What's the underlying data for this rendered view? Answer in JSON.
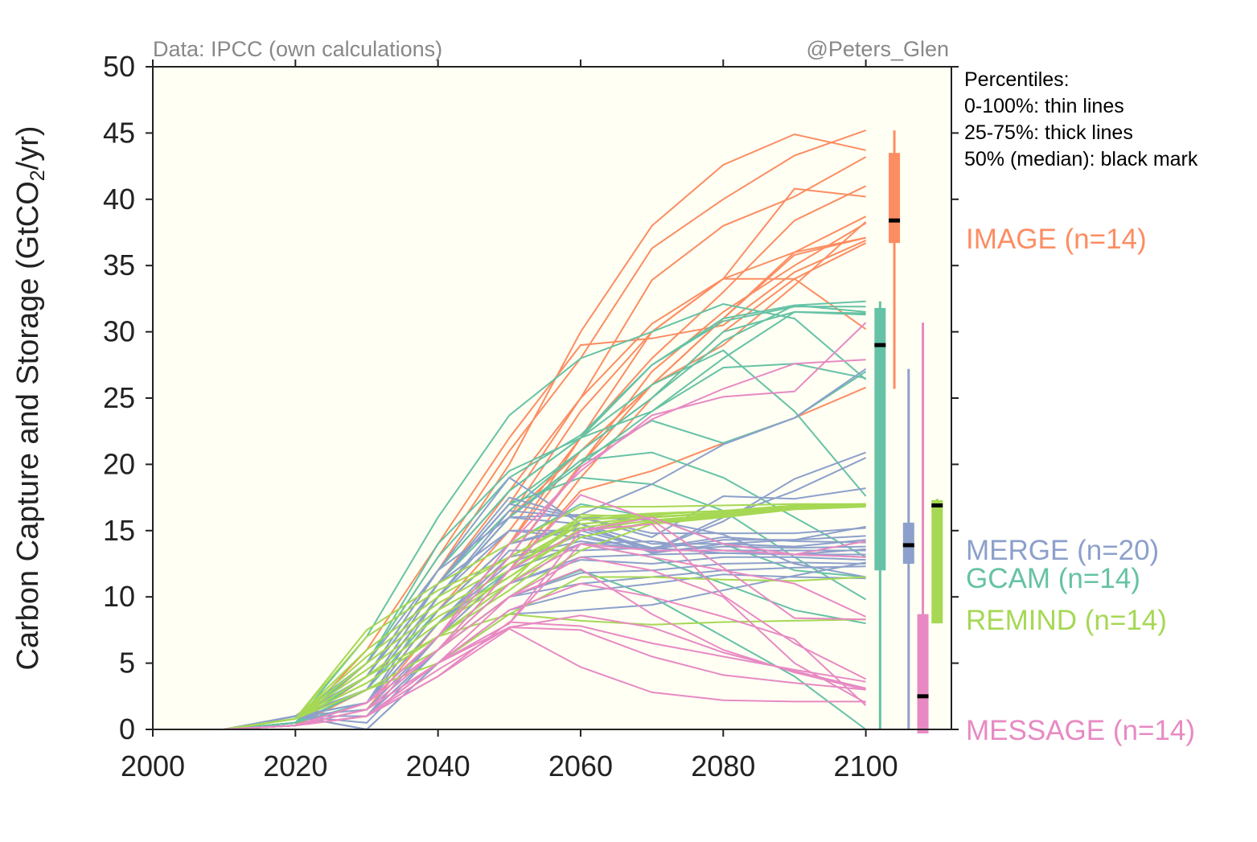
{
  "chart_data": {
    "type": "line",
    "header_left": "Data: IPCC (own calculations)",
    "header_right": "@Peters_Glen",
    "ylabel_main": "Carbon Capture and Storage (GtCO",
    "ylabel_sub": "2",
    "ylabel_end": "/yr)",
    "xlabel": "",
    "xlim": [
      2000,
      2112
    ],
    "ylim": [
      0,
      50
    ],
    "xticks": [
      2000,
      2020,
      2040,
      2060,
      2080,
      2100
    ],
    "yticks": [
      0,
      5,
      10,
      15,
      20,
      25,
      30,
      35,
      40,
      45,
      50
    ],
    "grid": false,
    "background": "#fffff4",
    "legend_notes": [
      "Percentiles:",
      "0-100%: thin lines",
      "25-75%: thick lines",
      "50% (median): black mark"
    ],
    "x": [
      2010,
      2020,
      2030,
      2040,
      2050,
      2060,
      2070,
      2080,
      2090,
      2100
    ],
    "models": [
      {
        "name": "IMAGE",
        "label": "IMAGE (n=14)",
        "color": "#fc8d62",
        "box": {
          "x": 2104,
          "min": 25.7,
          "q1": 36.7,
          "median": 38.4,
          "q3": 43.5,
          "max": 45.2
        },
        "series": [
          [
            0,
            0.3,
            2,
            9,
            15,
            22,
            30,
            34,
            36,
            37.1
          ],
          [
            0,
            0.3,
            3,
            11,
            18,
            25,
            30.6,
            34,
            34,
            30.2
          ],
          [
            0,
            0.3,
            4,
            12,
            20,
            30,
            38,
            42.6,
            44.9,
            43.7
          ],
          [
            0,
            0.3,
            5,
            13,
            21,
            28,
            36.3,
            40,
            43.3,
            45.2
          ],
          [
            0,
            0.3,
            4,
            11,
            17,
            25,
            33.9,
            38,
            40.2,
            43.2
          ],
          [
            0,
            0.3,
            3,
            10,
            16,
            24,
            30,
            34,
            40.8,
            40.2
          ],
          [
            0,
            0.3,
            2,
            9,
            14,
            22,
            28,
            33,
            38.4,
            41
          ],
          [
            0,
            0.3,
            3,
            10,
            16,
            21,
            26,
            31,
            36,
            38.7
          ],
          [
            0,
            0.3,
            2,
            8,
            13,
            20,
            27,
            31.5,
            35,
            38.2
          ],
          [
            0,
            0.3,
            1.5,
            8,
            13,
            20,
            26,
            31,
            35.8,
            37.1
          ],
          [
            0,
            0.3,
            1,
            7,
            12,
            19,
            25,
            30,
            34,
            36.7
          ],
          [
            0,
            0.3,
            2,
            9,
            14,
            21,
            26,
            29,
            33.5,
            38.3
          ],
          [
            0,
            0.3,
            1,
            7,
            12,
            18,
            19.5,
            21.6,
            23.5,
            25.8
          ],
          [
            0,
            0.3,
            6,
            14,
            22,
            29,
            29.5,
            30.5,
            34.5,
            36.9
          ]
        ]
      },
      {
        "name": "GCAM",
        "label": "GCAM  (n=14)",
        "color": "#66c2a5",
        "box": {
          "x": 2102,
          "min": 0,
          "q1": 12,
          "median": 29,
          "q3": 31.8,
          "max": 32.3
        },
        "series": [
          [
            0,
            0.5,
            7,
            16,
            23.7,
            28,
            30,
            32.1,
            31,
            26.4
          ],
          [
            0,
            0.5,
            5,
            13,
            19,
            22.2,
            27.5,
            31,
            32,
            32.3
          ],
          [
            0,
            0.5,
            4,
            12,
            18,
            22,
            27.5,
            30.8,
            31.9,
            31.9
          ],
          [
            0,
            0.5,
            4,
            11,
            17,
            21,
            25,
            29.3,
            32,
            31.5
          ],
          [
            0,
            0.5,
            3,
            11,
            16.5,
            21,
            25,
            30,
            31.5,
            31.4
          ],
          [
            0,
            0.5,
            3,
            10,
            16,
            20,
            24,
            28,
            31.5,
            31.3
          ],
          [
            0,
            0.5,
            3,
            10,
            16,
            20.3,
            23.3,
            21.6,
            23.5,
            27
          ],
          [
            0,
            0.5,
            5,
            14,
            19.5,
            22,
            24,
            27.3,
            27.6,
            26.5
          ],
          [
            0,
            0.5,
            4,
            12,
            18,
            22,
            26,
            28.6,
            24,
            17.6
          ],
          [
            0,
            0.5,
            3,
            10,
            16,
            20.3,
            20.9,
            19,
            16,
            13
          ],
          [
            0,
            0.5,
            4,
            11,
            17,
            19,
            18.5,
            16.5,
            13,
            9.8
          ],
          [
            0,
            0.5,
            3,
            9,
            14,
            17,
            16,
            14,
            12,
            11.5
          ],
          [
            0,
            0.5,
            2,
            8,
            12,
            14,
            13,
            11,
            9,
            8
          ],
          [
            0,
            0.5,
            2,
            6,
            10,
            12,
            10,
            7,
            4,
            0
          ]
        ]
      },
      {
        "name": "MERGE",
        "label": "MERGE (n=20)",
        "color": "#8da0cb",
        "box": {
          "x": 2106,
          "min": 0,
          "q1": 12.5,
          "median": 13.9,
          "q3": 15.6,
          "max": 27.2
        },
        "series": [
          [
            0,
            1,
            5,
            12,
            19,
            15.5,
            14,
            14,
            14.3,
            15.3
          ],
          [
            0,
            1,
            4,
            11,
            17,
            16,
            14.5,
            17.6,
            17.4,
            18.2
          ],
          [
            0,
            1,
            4,
            12,
            16,
            15.5,
            13.5,
            15.7,
            18.9,
            20.9
          ],
          [
            0,
            1,
            3,
            11,
            15,
            14.5,
            13.5,
            16,
            18,
            20.5
          ],
          [
            0,
            1,
            3,
            10,
            16,
            16.2,
            18.5,
            21.5,
            23.5,
            27.2
          ],
          [
            0,
            1,
            3,
            10,
            15,
            15,
            13.6,
            14.3,
            14.3,
            14.6
          ],
          [
            0,
            1,
            2,
            9,
            14,
            15.5,
            13.3,
            14,
            13.8,
            14.3
          ],
          [
            0,
            1,
            2,
            9,
            14,
            15.2,
            13.7,
            14.5,
            14.2,
            14.1
          ],
          [
            0,
            1,
            2,
            8,
            12.5,
            14.7,
            13.4,
            13.8,
            13.7,
            13.8
          ],
          [
            0,
            1,
            2,
            8,
            13,
            14.2,
            13.5,
            13.5,
            13.5,
            13.5
          ],
          [
            0,
            1,
            1.5,
            7,
            12,
            14,
            14.2,
            13.5,
            13.2,
            13.2
          ],
          [
            0,
            1,
            1,
            7,
            11,
            13,
            13.2,
            13.3,
            13.2,
            13
          ],
          [
            0,
            1,
            1,
            6,
            11,
            12.8,
            12.5,
            13,
            13,
            12.8
          ],
          [
            0,
            1,
            1,
            6,
            10,
            11.8,
            12,
            12.5,
            12.6,
            12.5
          ],
          [
            0,
            1,
            0.5,
            6,
            10,
            11,
            11.5,
            12,
            12.2,
            12.3
          ],
          [
            0,
            1,
            0,
            5,
            9,
            10.4,
            11,
            11.7,
            11.5,
            11.4
          ],
          [
            0,
            1,
            0,
            5,
            8.7,
            9,
            9.4,
            10.5,
            11.6,
            12.6
          ],
          [
            0,
            1,
            2,
            8,
            13.5,
            13.5,
            13.7,
            13.3,
            13.2,
            13.6
          ],
          [
            0,
            1,
            3,
            11,
            17.5,
            16,
            14.8,
            14.8,
            14.8,
            15.2
          ],
          [
            0,
            1,
            2,
            10,
            16.5,
            16,
            15.8,
            14.7,
            12.5,
            11.5
          ]
        ]
      },
      {
        "name": "REMIND",
        "label": "REMIND (n=14)",
        "color": "#a6d854",
        "box": {
          "x": 2110,
          "min": 8,
          "q1": 8,
          "median": 16.9,
          "q3": 17.3,
          "max": 17.4
        },
        "series": [
          [
            0,
            0.8,
            7.5,
            11,
            14,
            16.8,
            16.8,
            16.9,
            17,
            17
          ],
          [
            0,
            0.8,
            7,
            10.5,
            13,
            16,
            16.3,
            16.5,
            16.9,
            17
          ],
          [
            0,
            0.8,
            6,
            10,
            13,
            15.8,
            16.2,
            16.5,
            16.8,
            16.9
          ],
          [
            0,
            0.8,
            5.5,
            9.5,
            12.5,
            15.5,
            16,
            16.3,
            16.8,
            16.9
          ],
          [
            0,
            0.8,
            5,
            9,
            12,
            15.8,
            16.1,
            16.2,
            16.7,
            16.9
          ],
          [
            0,
            0.8,
            5,
            9,
            12,
            15.5,
            16,
            16.4,
            16.8,
            16.9
          ],
          [
            0,
            0.8,
            4.5,
            8.5,
            11.5,
            15,
            15.8,
            16.2,
            16.7,
            16.9
          ],
          [
            0,
            0.8,
            4,
            8,
            11,
            14.5,
            15.7,
            16.1,
            16.7,
            16.9
          ],
          [
            0,
            0.8,
            4,
            8,
            11.5,
            15.2,
            16,
            16.3,
            16.8,
            16.9
          ],
          [
            0,
            0.8,
            3.5,
            7,
            10.5,
            14.5,
            15.6,
            16.1,
            16.7,
            16.9
          ],
          [
            0,
            0.8,
            3.5,
            7,
            11,
            16.2,
            16,
            16.3,
            16.8,
            17
          ],
          [
            0,
            0.8,
            3,
            6,
            10,
            13.5,
            15.5,
            16,
            16.6,
            16.8
          ],
          [
            0,
            0.8,
            3,
            5,
            8.7,
            11.5,
            11.5,
            11.3,
            11.2,
            11.5
          ],
          [
            0,
            0.8,
            4,
            7,
            8.7,
            8.2,
            7.9,
            8.1,
            8.2,
            8.3
          ]
        ]
      },
      {
        "name": "MESSAGE",
        "label": "MESSAGE (n=14)",
        "color": "#e78ac3",
        "box": {
          "x": 2108,
          "min": -0.3,
          "q1": -0.3,
          "median": 2.5,
          "q3": 8.7,
          "max": 30.7
        },
        "series": [
          [
            0,
            0.3,
            2,
            7,
            14,
            19.5,
            23.7,
            25.1,
            25.5,
            30.7
          ],
          [
            0,
            0.3,
            2,
            7,
            13,
            19.8,
            23.4,
            25.7,
            27.6,
            27.9
          ],
          [
            0,
            0.3,
            2,
            6,
            12,
            17.7,
            15.8,
            12.2,
            8.4,
            8.3
          ],
          [
            0,
            0.3,
            2,
            6,
            12,
            15,
            16,
            14,
            13.2,
            14.2
          ],
          [
            0,
            0.3,
            1.5,
            5,
            8,
            14,
            13.5,
            13.5,
            13.2,
            13
          ],
          [
            0,
            0.3,
            1.5,
            6,
            10,
            12.1,
            8.7,
            6,
            4.3,
            3
          ],
          [
            0,
            0.3,
            1,
            5,
            8,
            15,
            15.5,
            10.1,
            6.5,
            3.8
          ],
          [
            0,
            0.3,
            1,
            5,
            7.7,
            8.6,
            7.7,
            5.8,
            4.4,
            3.1
          ],
          [
            0,
            0.3,
            1,
            4,
            7.6,
            4.7,
            2.8,
            2.2,
            2.1,
            2.1
          ],
          [
            0,
            0.3,
            1,
            4.5,
            7.7,
            7.5,
            5.5,
            4.1,
            3.5,
            3.0
          ],
          [
            0,
            0.3,
            1,
            4,
            8.1,
            7.8,
            6.5,
            5.5,
            4.5,
            3.6
          ],
          [
            0,
            0.3,
            1,
            5,
            9,
            11,
            10,
            8.5,
            6.8,
            1.8
          ],
          [
            0,
            0.3,
            1.5,
            5,
            10,
            13,
            12,
            10,
            5,
            2
          ],
          [
            0,
            0.3,
            2,
            6,
            11,
            14,
            13,
            12,
            11,
            8.5
          ]
        ]
      }
    ]
  }
}
